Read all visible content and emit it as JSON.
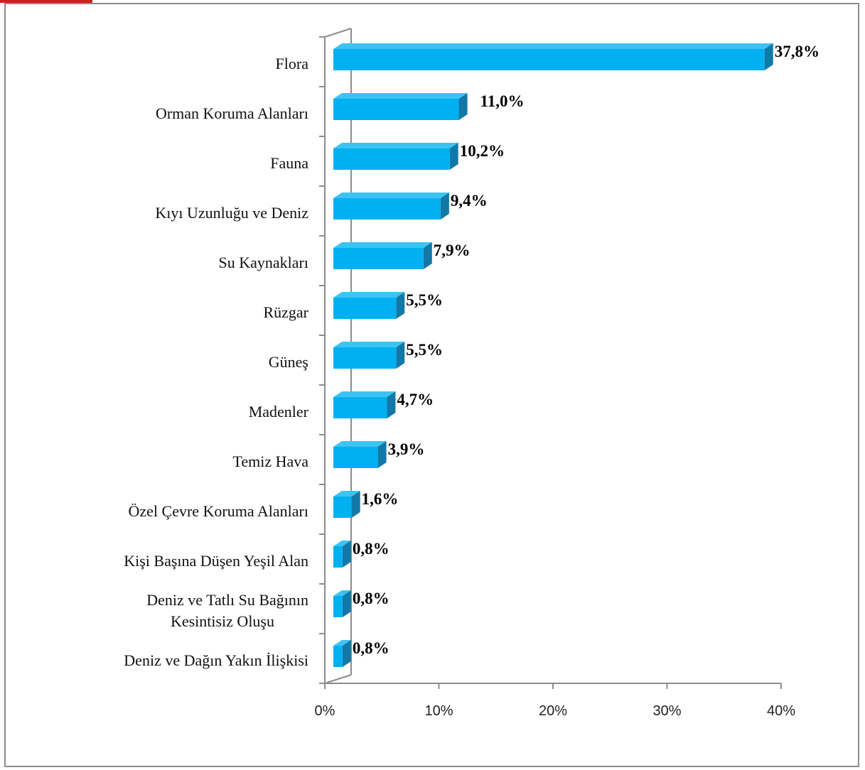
{
  "chart_data": {
    "type": "bar",
    "orientation": "horizontal",
    "style": "3d-clustered",
    "categories": [
      "Flora",
      "Orman Koruma Alanları",
      "Fauna",
      "Kıyı Uzunluğu ve Deniz",
      "Su Kaynakları",
      "Rüzgar",
      "Güneş",
      "Madenler",
      "Temiz Hava",
      "Özel Çevre Koruma Alanları",
      "Kişi Başına Düşen Yeşil Alan",
      "Deniz ve Tatlı Su Bağının Kesintisiz Oluşu",
      "Deniz ve Dağın Yakın İlişkisi"
    ],
    "values": [
      37.8,
      11.0,
      10.2,
      9.4,
      7.9,
      5.5,
      5.5,
      4.7,
      3.9,
      1.6,
      0.8,
      0.8,
      0.8
    ],
    "value_labels": [
      "37,8%",
      "11,0%",
      "10,2%",
      "9,4%",
      "7,9%",
      "5,5%",
      "5,5%",
      "4,7%",
      "3,9%",
      "1,6%",
      "0,8%",
      "0,8%",
      "0,8%"
    ],
    "xlim": [
      0,
      40
    ],
    "xticks": [
      "0%",
      "10%",
      "20%",
      "30%",
      "40%"
    ],
    "grid": false,
    "legend": "none",
    "colors": {
      "bar_front": "#00b0f0",
      "bar_top": "#3dc3f3",
      "bar_side": "#1178a8"
    }
  }
}
